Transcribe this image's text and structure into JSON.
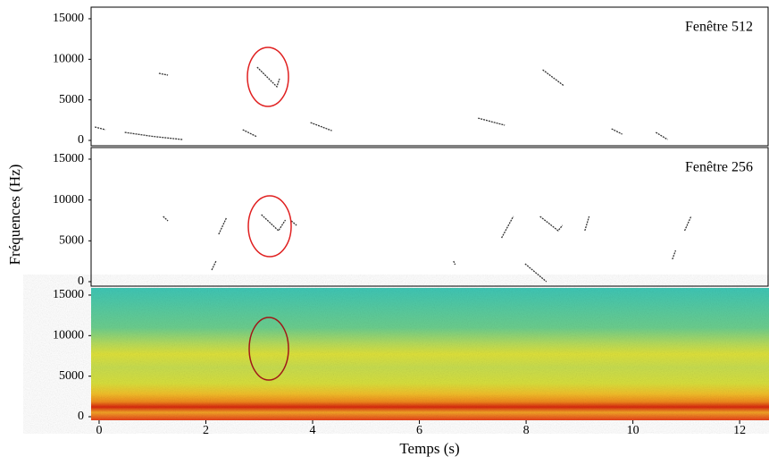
{
  "y_label": "Fréquences (Hz)",
  "x_label": "Temps (s)",
  "chart_data": [
    {
      "type": "line",
      "title": "Fenêtre 512",
      "color": "#333333",
      "xlim": [
        -0.15,
        12.55
      ],
      "ylim": [
        -660,
        16430
      ],
      "yticks": [
        0,
        5000,
        10000,
        15000
      ],
      "contours": [
        {
          "x": [
            2.96,
            3.33,
            3.38
          ],
          "y": [
            9040,
            6620,
            7600
          ]
        },
        {
          "x": [
            1.12,
            1.29
          ],
          "y": [
            8270,
            8050
          ]
        },
        {
          "x": [
            8.31,
            8.71
          ],
          "y": [
            8710,
            6730
          ]
        },
        {
          "x": [
            -0.08,
            0.12
          ],
          "y": [
            1650,
            1320
          ]
        },
        {
          "x": [
            0.48,
            1.0,
            1.57
          ],
          "y": [
            990,
            500,
            100
          ]
        },
        {
          "x": [
            2.69,
            2.96
          ],
          "y": [
            1320,
            440
          ]
        },
        {
          "x": [
            3.96,
            4.36
          ],
          "y": [
            2200,
            1200
          ]
        },
        {
          "x": [
            7.1,
            7.6
          ],
          "y": [
            2750,
            1870
          ]
        },
        {
          "x": [
            9.6,
            9.8
          ],
          "y": [
            1430,
            770
          ]
        },
        {
          "x": [
            10.43,
            10.65
          ],
          "y": [
            990,
            110
          ]
        }
      ]
    },
    {
      "type": "line",
      "title": "Fenêtre 256",
      "color": "#333333",
      "xlim": [
        -0.15,
        12.55
      ],
      "ylim": [
        -550,
        16420
      ],
      "yticks": [
        0,
        5000,
        10000,
        15000
      ],
      "contours": [
        {
          "x": [
            3.04,
            3.36,
            3.49
          ],
          "y": [
            8210,
            6240,
            7550
          ]
        },
        {
          "x": [
            1.2,
            1.29
          ],
          "y": [
            7990,
            7440
          ]
        },
        {
          "x": [
            2.24,
            2.39
          ],
          "y": [
            5800,
            7880
          ]
        },
        {
          "x": [
            2.11,
            2.19
          ],
          "y": [
            1420,
            2520
          ]
        },
        {
          "x": [
            3.6,
            3.7
          ],
          "y": [
            7440,
            6900
          ]
        },
        {
          "x": [
            6.64,
            6.67
          ],
          "y": [
            2520,
            2080
          ]
        },
        {
          "x": [
            7.54,
            7.76
          ],
          "y": [
            5360,
            7990
          ]
        },
        {
          "x": [
            8.26,
            8.6,
            8.68
          ],
          "y": [
            7990,
            6240,
            6900
          ]
        },
        {
          "x": [
            7.98,
            8.38
          ],
          "y": [
            2190,
            0
          ]
        },
        {
          "x": [
            9.1,
            9.18
          ],
          "y": [
            6240,
            7990
          ]
        },
        {
          "x": [
            10.74,
            10.8
          ],
          "y": [
            2740,
            3830
          ]
        },
        {
          "x": [
            10.97,
            11.09
          ],
          "y": [
            6240,
            7990
          ]
        }
      ]
    },
    {
      "type": "spectrogram",
      "xlim": [
        -0.15,
        12.55
      ],
      "ylim": [
        -440,
        15880
      ],
      "yticks": [
        0,
        5000,
        10000,
        15000
      ],
      "xticks": [
        0,
        2,
        4,
        6,
        8,
        10,
        12
      ]
    }
  ]
}
